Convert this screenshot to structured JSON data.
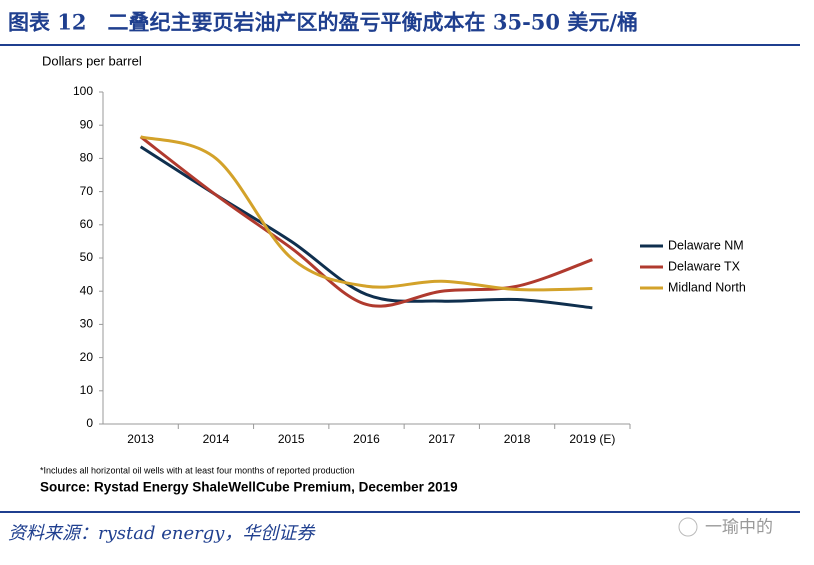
{
  "header": {
    "title": "图表 12　二叠纪主要页岩油产区的盈亏平衡成本在 35-50 美元/桶"
  },
  "chart_data": {
    "type": "line",
    "y_label": "Dollars per barrel",
    "categories": [
      "2013",
      "2014",
      "2015",
      "2016",
      "2017",
      "2018",
      "2019 (E)"
    ],
    "series": [
      {
        "name": "Delaware NM",
        "color": "#0f2f4e",
        "values": [
          83.5,
          69,
          55,
          39,
          37,
          37.5,
          35
        ]
      },
      {
        "name": "Delaware TX",
        "color": "#b03a2e",
        "values": [
          86.5,
          69,
          53,
          36,
          40,
          41.5,
          49.5
        ]
      },
      {
        "name": "Midland North",
        "color": "#d3a22a",
        "values": [
          86.5,
          80,
          50,
          41.5,
          43,
          40.5,
          40.8
        ]
      }
    ],
    "ylim": [
      0,
      100
    ],
    "yticks": [
      0,
      10,
      20,
      30,
      40,
      50,
      60,
      70,
      80,
      90,
      100
    ],
    "grid": false,
    "legend": "right",
    "footnote": "*Includes all horizontal oil wells with at least four months of reported production",
    "source": "Source: Rystad Energy ShaleWellCube Premium, December 2019"
  },
  "footer": {
    "source": "资料来源：rystad energy，华创证券",
    "watermark": "一瑜中的"
  }
}
